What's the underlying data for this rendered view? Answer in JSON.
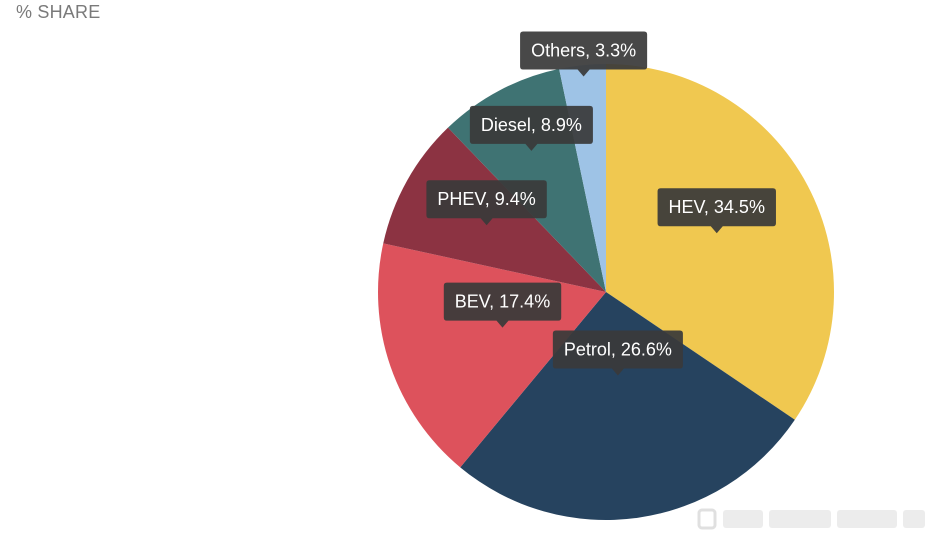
{
  "header": {
    "title": "% SHARE"
  },
  "chart_data": {
    "type": "pie",
    "title": "% SHARE",
    "slices": [
      {
        "label": "HEV",
        "value": 34.5,
        "display": "HEV, 34.5%",
        "color": "#F0C850"
      },
      {
        "label": "Petrol",
        "value": 26.6,
        "display": "Petrol, 26.6%",
        "color": "#26435F"
      },
      {
        "label": "BEV",
        "value": 17.4,
        "display": "BEV, 17.4%",
        "color": "#DD525C"
      },
      {
        "label": "PHEV",
        "value": 9.4,
        "display": "PHEV, 9.4%",
        "color": "#8C3342"
      },
      {
        "label": "Diesel",
        "value": 8.9,
        "display": "Diesel, 8.9%",
        "color": "#3F7373"
      },
      {
        "label": "Others",
        "value": 3.3,
        "display": "Others, 3.3%",
        "color": "#9EC3E6"
      }
    ],
    "start": "12 o'clock",
    "direction": "clockwise",
    "legend": "none",
    "labels": "tooltip-style callouts on slices"
  }
}
